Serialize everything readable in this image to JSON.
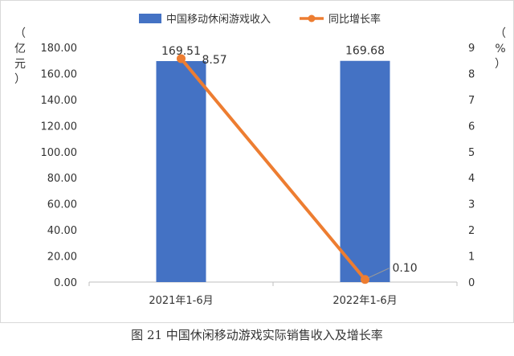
{
  "chart_data": {
    "type": "bar+line",
    "categories": [
      "2021年1-6月",
      "2022年1-6月"
    ],
    "series": [
      {
        "name": "中国移动休闲游戏收入",
        "type": "bar",
        "axis": "left",
        "values": [
          169.51,
          169.68
        ],
        "labels": [
          "169.51",
          "169.68"
        ],
        "color": "#4472C4"
      },
      {
        "name": "同比增长率",
        "type": "line",
        "axis": "right",
        "values": [
          8.57,
          0.1
        ],
        "labels": [
          "8.57",
          "0.10"
        ],
        "color": "#ED7D31"
      }
    ],
    "y_left": {
      "unit": "（亿元）",
      "ylim": [
        0,
        180
      ],
      "ticks": [
        "0.00",
        "20.00",
        "40.00",
        "60.00",
        "80.00",
        "100.00",
        "120.00",
        "140.00",
        "160.00",
        "180.00"
      ]
    },
    "y_right": {
      "unit": "（%）",
      "ylim": [
        0,
        9
      ],
      "ticks": [
        "0",
        "1",
        "2",
        "3",
        "4",
        "5",
        "6",
        "7",
        "8",
        "9"
      ]
    },
    "legend_position": "top-center",
    "grid": false
  },
  "caption": "图 21 中国休闲移动游戏实际销售收入及增长率"
}
